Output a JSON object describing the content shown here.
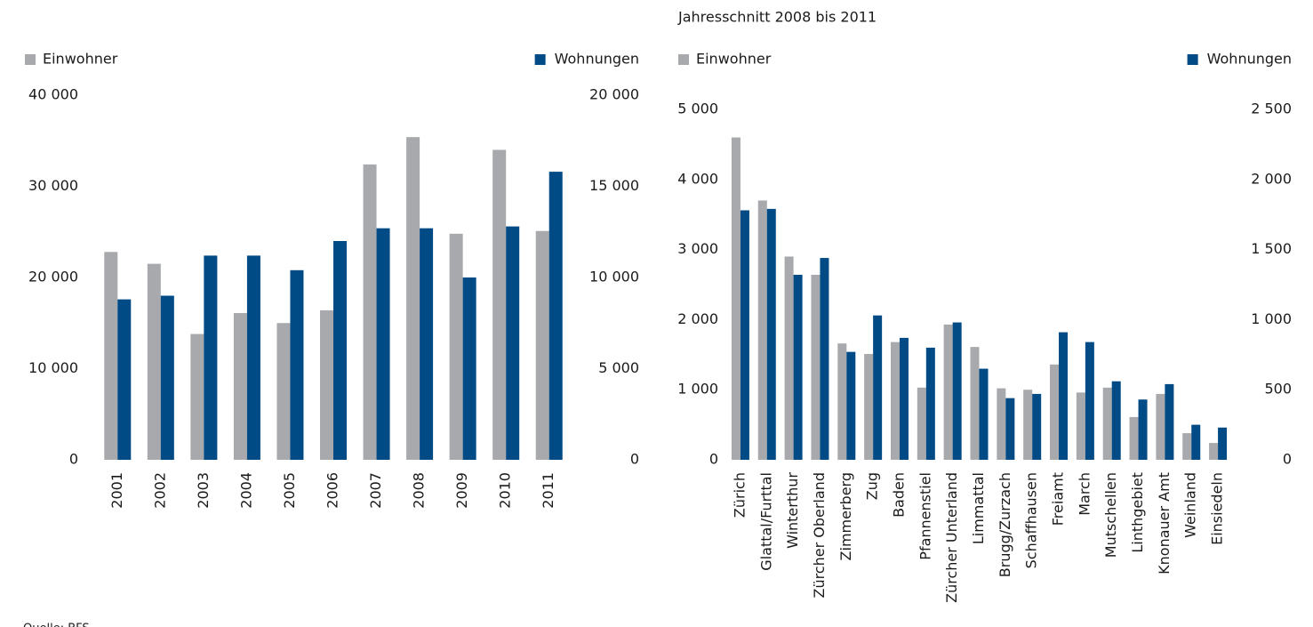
{
  "chart_data": [
    {
      "type": "bar",
      "source": "Quelle: BFS",
      "categories": [
        "2001",
        "2002",
        "2003",
        "2004",
        "2005",
        "2006",
        "2007",
        "2008",
        "2009",
        "2010",
        "2011"
      ],
      "series": [
        {
          "name": "Einwohner",
          "color": "#a7a9ac",
          "values": [
            22800,
            21500,
            13800,
            16100,
            15000,
            16400,
            32400,
            35400,
            24800,
            34000,
            25100
          ]
        },
        {
          "name": "Wohnungen",
          "color": "#004a85",
          "axis": "y2",
          "values": [
            8800,
            9000,
            11200,
            11200,
            10400,
            12000,
            12700,
            12700,
            10000,
            12800,
            15800
          ]
        }
      ],
      "ylim": [
        0,
        40000
      ],
      "yticks": [
        0,
        {
          "value": 10000,
          "label": "10 000"
        },
        {
          "value": 20000,
          "label": "20 000"
        },
        {
          "value": 30000,
          "label": "30 000"
        },
        {
          "value": 40000,
          "label": "40 000"
        }
      ],
      "y2lim": [
        0,
        20000
      ],
      "y2ticks": [
        0,
        {
          "value": 5000,
          "label": "5 000"
        },
        {
          "value": 10000,
          "label": "10 000"
        },
        {
          "value": 15000,
          "label": "15 000"
        },
        {
          "value": 20000,
          "label": "20 000"
        }
      ],
      "grid": false
    },
    {
      "type": "bar",
      "title": "Jahresschnitt 2008 bis 2011",
      "categories": [
        "Zürich",
        "Glattal/Furttal",
        "Winterthur",
        "Zürcher Oberland",
        "Zimmerberg",
        "Zug",
        "Baden",
        "Pfannenstiel",
        "Zürcher Unterland",
        "Limmattal",
        "Brugg/Zurzach",
        "Schaffhausen",
        "Freiamt",
        "March",
        "Mutschellen",
        "Linthgebiet",
        "Knonauer Amt",
        "Weinland",
        "Einsiedeln"
      ],
      "series": [
        {
          "name": "Einwohner",
          "color": "#a7a9ac",
          "values": [
            4600,
            3700,
            2900,
            2640,
            1660,
            1510,
            1680,
            1030,
            1930,
            1610,
            1020,
            1000,
            1360,
            960,
            1030,
            610,
            940,
            380,
            240
          ]
        },
        {
          "name": "Wohnungen",
          "color": "#004a85",
          "axis": "y2",
          "values": [
            1780,
            1790,
            1320,
            1440,
            770,
            1030,
            870,
            800,
            980,
            650,
            440,
            470,
            910,
            840,
            560,
            430,
            540,
            250,
            230
          ]
        }
      ],
      "ylim": [
        0,
        5000
      ],
      "yticks": [
        0,
        {
          "value": 1000,
          "label": "1 000"
        },
        {
          "value": 2000,
          "label": "2 000"
        },
        {
          "value": 3000,
          "label": "3 000"
        },
        {
          "value": 4000,
          "label": "4 000"
        },
        {
          "value": 5000,
          "label": "5 000"
        }
      ],
      "y2lim": [
        0,
        2500
      ],
      "y2ticks": [
        0,
        500,
        {
          "value": 1000,
          "label": "1 000"
        },
        {
          "value": 1500,
          "label": "1 500"
        },
        {
          "value": 2000,
          "label": "2 000"
        },
        {
          "value": 2500,
          "label": "2 500"
        }
      ],
      "grid": false
    }
  ]
}
